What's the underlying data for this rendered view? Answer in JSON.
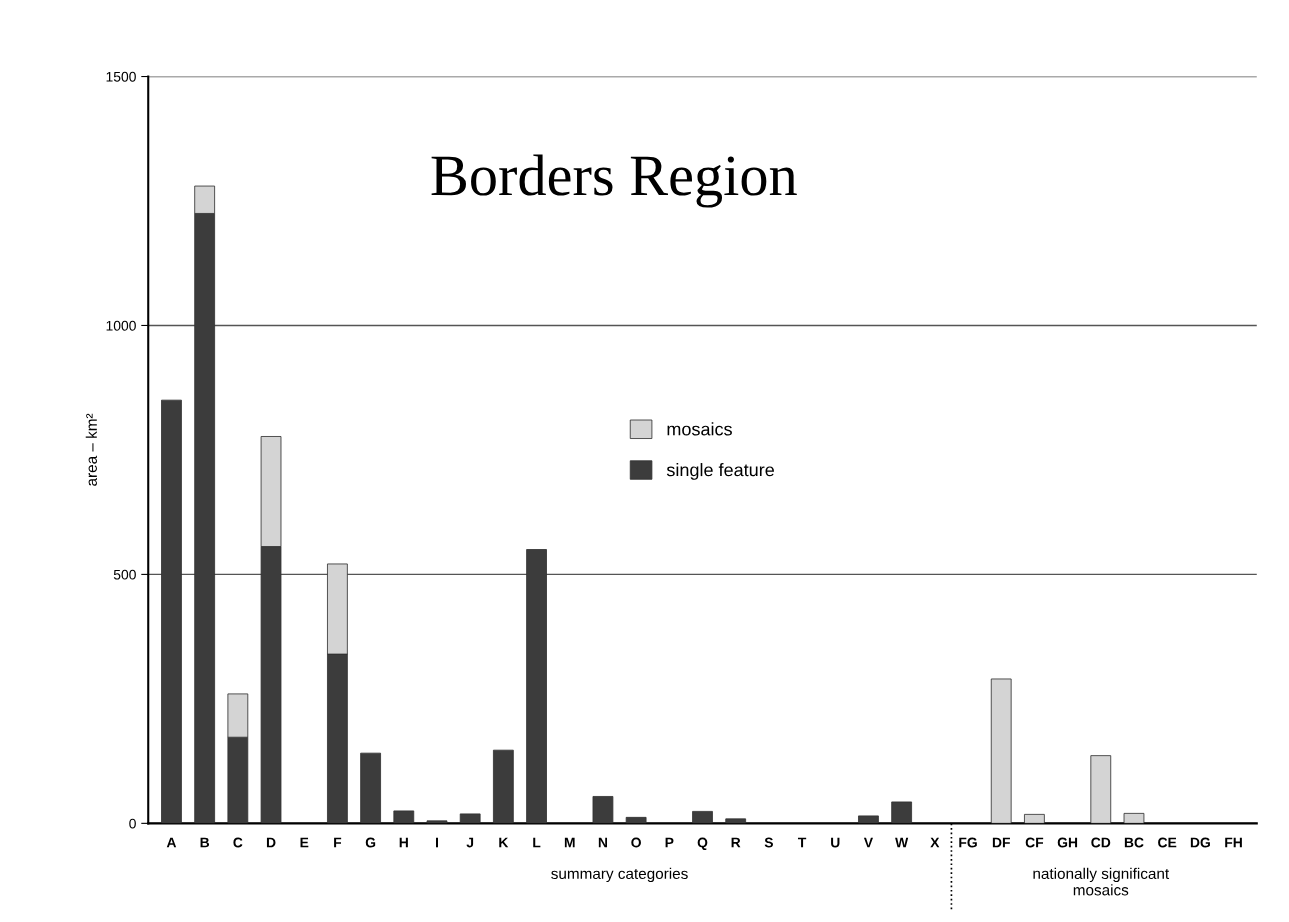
{
  "chart_data": {
    "type": "bar",
    "title": "Borders Region",
    "ylabel": "area – km²",
    "categories": [
      "A",
      "B",
      "C",
      "D",
      "E",
      "F",
      "G",
      "H",
      "I",
      "J",
      "K",
      "L",
      "M",
      "N",
      "O",
      "P",
      "Q",
      "R",
      "S",
      "T",
      "U",
      "V",
      "W",
      "X",
      "FG",
      "DF",
      "CF",
      "GH",
      "CD",
      "BC",
      "CE",
      "DG",
      "FH"
    ],
    "stacked": true,
    "series": [
      {
        "name": "single feature",
        "color": "#3c3c3c",
        "values": [
          850,
          1225,
          173,
          556,
          null,
          340,
          141,
          25,
          5,
          19,
          147,
          550,
          null,
          54,
          12,
          null,
          24,
          9,
          null,
          null,
          null,
          15,
          43,
          null,
          null,
          null,
          null,
          null,
          null,
          null,
          null,
          null,
          null
        ]
      },
      {
        "name": "mosaics",
        "color": "#d4d4d4",
        "values": [
          null,
          55,
          87,
          221,
          null,
          181,
          null,
          null,
          null,
          null,
          null,
          null,
          null,
          null,
          null,
          null,
          null,
          null,
          null,
          null,
          null,
          null,
          null,
          null,
          null,
          290,
          18,
          null,
          136,
          20,
          null,
          null,
          null
        ]
      }
    ],
    "ylim": [
      0,
      1500
    ],
    "yticks": [
      0,
      500,
      1000,
      1500
    ],
    "grid": "y",
    "legend": "center",
    "annotations": [
      "summary categories",
      "nationally significant\nmosaics"
    ]
  }
}
